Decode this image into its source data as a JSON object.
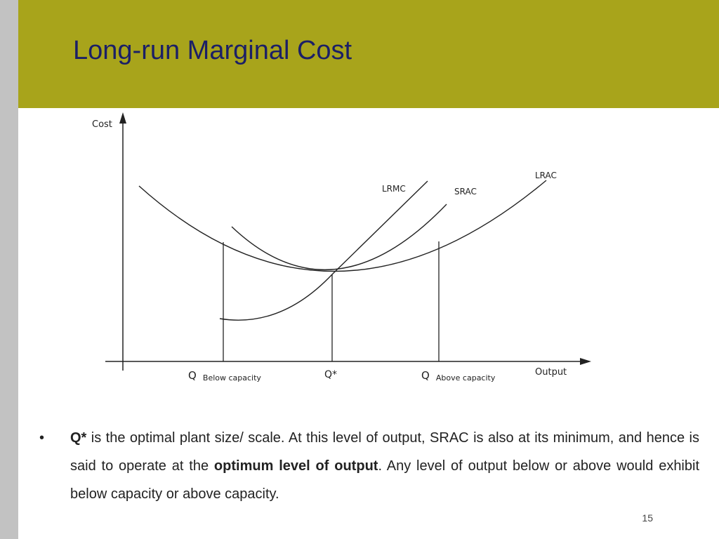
{
  "slide": {
    "title": "Long-run Marginal Cost",
    "number": "15"
  },
  "diagram": {
    "y_axis_label": "Cost",
    "x_axis_label": "Output",
    "curves": {
      "lrmc": "LRMC",
      "srac": "SRAC",
      "lrac": "LRAC"
    },
    "x_markers": {
      "below": {
        "main": "Q",
        "sub": "Below capacity"
      },
      "optimal": {
        "main": "Q*"
      },
      "above": {
        "main": "Q",
        "sub": "Above capacity"
      }
    }
  },
  "bullet": {
    "symbol": "•",
    "term": "Q*",
    "text_1": " is the optimal plant size/ scale. At this level of output, SRAC is also at its minimum, and hence is said to operate at the ",
    "emphasis": "optimum level of output",
    "text_2": ". Any level of output below or above would exhibit below capacity or above capacity."
  }
}
